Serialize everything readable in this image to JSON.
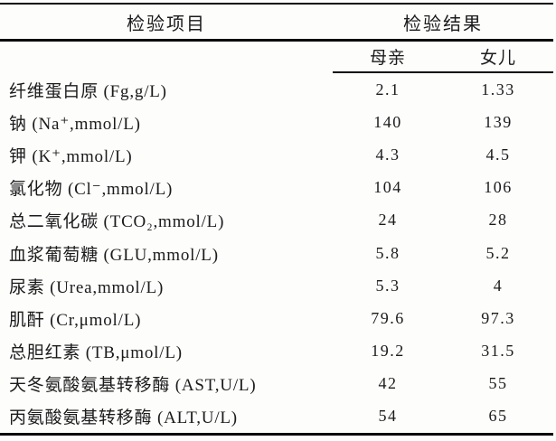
{
  "page": {
    "background_color": "#fdfdfc",
    "rule_color": "#0a0a0a",
    "text_color": "#1b1b1b"
  },
  "table": {
    "header": {
      "items_header": "检验项目",
      "results_header": "检验结果"
    },
    "subheader": {
      "mother": "母亲",
      "daughter": "女儿"
    },
    "rows": [
      {
        "item": "纤维蛋白原 (Fg,g/L)",
        "mother": "2.1",
        "daughter": "1.33"
      },
      {
        "item": "钠 (Na⁺,mmol/L)",
        "mother": "140",
        "daughter": "139"
      },
      {
        "item": "钾 (K⁺,mmol/L)",
        "mother": "4.3",
        "daughter": "4.5"
      },
      {
        "item": "氯化物 (Cl⁻,mmol/L)",
        "mother": "104",
        "daughter": "106"
      },
      {
        "item": "总二氧化碳 (TCO₂,mmol/L)",
        "mother": "24",
        "daughter": "28"
      },
      {
        "item": "血浆葡萄糖 (GLU,mmol/L)",
        "mother": "5.8",
        "daughter": "5.2"
      },
      {
        "item": "尿素 (Urea,mmol/L)",
        "mother": "5.3",
        "daughter": "4"
      },
      {
        "item": "肌酐 (Cr,μmol/L)",
        "mother": "79.6",
        "daughter": "97.3"
      },
      {
        "item": "总胆红素 (TB,μmol/L)",
        "mother": "19.2",
        "daughter": "31.5"
      },
      {
        "item": "天冬氨酸氨基转移酶 (AST,U/L)",
        "mother": "42",
        "daughter": "55"
      },
      {
        "item": "丙氨酸氨基转移酶 (ALT,U/L)",
        "mother": "54",
        "daughter": "65"
      }
    ]
  }
}
